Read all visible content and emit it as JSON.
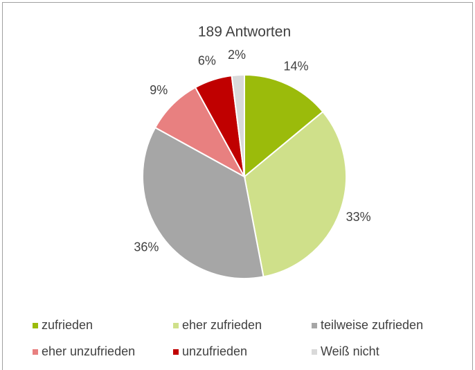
{
  "chart_data": {
    "type": "pie",
    "title": "189 Antworten",
    "categories": [
      "zufrieden",
      "eher zufrieden",
      "teilweise zufrieden",
      "eher unzufrieden",
      "unzufrieden",
      "Weiß nicht"
    ],
    "values": [
      14,
      33,
      36,
      9,
      6,
      2
    ],
    "value_labels": [
      "14%",
      "33%",
      "36%",
      "9%",
      "6%",
      "2%"
    ],
    "colors": [
      "#9bbb0b",
      "#cfe08a",
      "#a6a6a6",
      "#e88080",
      "#c00000",
      "#d9d9d9"
    ],
    "legend": "bottom"
  }
}
